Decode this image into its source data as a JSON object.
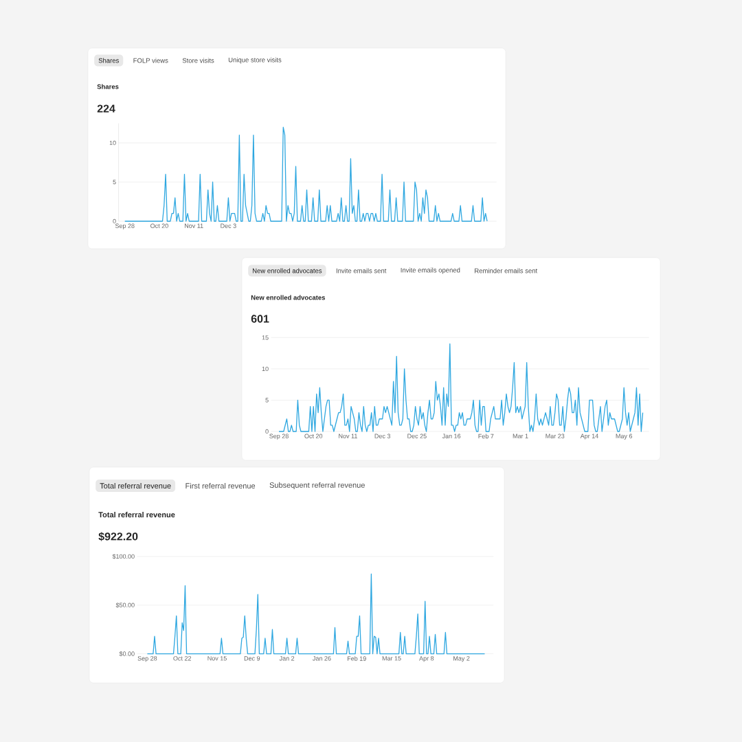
{
  "chart_data": [
    {
      "type": "line",
      "title": "Shares",
      "subtitle": "224",
      "annotations": [
        "Shares",
        "FOLP views",
        "Store visits",
        "Unique store visits"
      ],
      "color": "#2ea7e0",
      "line_style": "solid",
      "grid": "y",
      "ylim": [
        0,
        12.5
      ],
      "yticks": [
        0,
        5,
        10
      ],
      "categories": [
        "Sep 28",
        null,
        null,
        null,
        null,
        null,
        null,
        null,
        null,
        null,
        null,
        null,
        null,
        null,
        null,
        null,
        null,
        null,
        null,
        null,
        null,
        null,
        "Oct 20",
        null,
        null,
        null,
        null,
        null,
        null,
        null,
        null,
        null,
        null,
        null,
        null,
        null,
        null,
        null,
        null,
        null,
        null,
        null,
        null,
        null,
        "Nov 11",
        null,
        null,
        null,
        null,
        null,
        null,
        null,
        null,
        null,
        null,
        null,
        null,
        null,
        null,
        null,
        null,
        null,
        null,
        null,
        null,
        null,
        "Dec 3",
        null,
        null,
        null,
        null,
        null,
        null,
        null,
        null,
        null,
        null,
        null,
        null,
        null,
        null,
        null,
        null,
        null,
        null,
        null,
        null,
        null,
        null,
        null,
        null,
        null,
        null,
        null,
        null,
        null,
        null,
        null,
        null,
        null,
        null,
        null,
        null,
        null,
        null,
        null,
        null,
        null,
        null,
        null,
        null,
        null,
        null,
        null,
        null,
        null,
        null,
        null,
        null,
        null,
        null,
        null,
        null,
        null,
        null,
        null,
        null,
        null,
        null,
        null,
        null,
        null,
        null,
        null,
        null,
        null,
        null,
        null,
        null,
        null,
        null,
        null,
        null,
        null,
        null,
        null,
        null,
        null,
        null,
        null,
        null,
        null,
        null,
        null,
        null,
        null,
        null,
        null,
        null,
        null,
        null,
        null,
        null,
        null,
        null,
        null,
        null,
        null,
        null,
        null,
        null,
        null,
        null,
        null,
        null,
        null,
        null,
        null,
        null,
        null,
        null,
        null,
        null,
        null,
        null,
        null,
        null,
        null,
        null,
        null,
        null,
        null,
        null,
        null,
        null,
        null,
        null,
        null,
        null,
        null,
        null,
        null,
        null,
        null,
        null,
        null,
        null,
        null,
        null,
        null,
        null,
        null,
        null,
        null,
        null,
        null,
        null,
        null,
        null,
        null,
        null,
        null,
        null,
        null,
        null,
        null,
        null,
        null,
        null,
        null,
        null,
        null
      ],
      "values": [
        0,
        0,
        0,
        0,
        0,
        0,
        0,
        0,
        0,
        0,
        0,
        0,
        0,
        0,
        0,
        0,
        0,
        0,
        0,
        0,
        0,
        0,
        0,
        0,
        0,
        2,
        6,
        0,
        0,
        0,
        1,
        1,
        3,
        0,
        1,
        0,
        0,
        0,
        6,
        0,
        1,
        0,
        0,
        0,
        0,
        0,
        0,
        0,
        6,
        0,
        0,
        0,
        0,
        4,
        1,
        0,
        5,
        0,
        0,
        2,
        0,
        0,
        0,
        0,
        0,
        0,
        3,
        0,
        1,
        1,
        1,
        0,
        0,
        11,
        0,
        0,
        6,
        2,
        1,
        0,
        0,
        2,
        11,
        1,
        0,
        0,
        0,
        0,
        1,
        0,
        2,
        1,
        1,
        0,
        0,
        0,
        0,
        0,
        0,
        0,
        0,
        12,
        11,
        0,
        2,
        1,
        1,
        0,
        1,
        7,
        0,
        0,
        0,
        2,
        0,
        0,
        4,
        0,
        0,
        0,
        3,
        0,
        0,
        0,
        4,
        0,
        0,
        0,
        0,
        2,
        0,
        2,
        0,
        0,
        0,
        0,
        1,
        0,
        3,
        0,
        0,
        2,
        0,
        0,
        8,
        1,
        2,
        0,
        0,
        4,
        0,
        0,
        1,
        0,
        1,
        1,
        0,
        1,
        1,
        0,
        1,
        0,
        0,
        0,
        6,
        0,
        0,
        0,
        0,
        4,
        0,
        0,
        0,
        3,
        0,
        0,
        0,
        0,
        5,
        0,
        0,
        0,
        0,
        0,
        0,
        5,
        4,
        0,
        1,
        0,
        3,
        1,
        4,
        3,
        0,
        0,
        0,
        0,
        2,
        0,
        1,
        0,
        0,
        0,
        0,
        0,
        0,
        0,
        0,
        1,
        0,
        0,
        0,
        0,
        2,
        0,
        0,
        0,
        0,
        0,
        0,
        0,
        2,
        0,
        0,
        0,
        0,
        0,
        3,
        0,
        1,
        0
      ]
    },
    {
      "type": "line",
      "title": "New enrolled advocates",
      "subtitle": "601",
      "annotations": [
        "New enrolled advocates",
        "Invite emails sent",
        "Invite emails opened",
        "Reminder emails sent"
      ],
      "color": "#2ea7e0",
      "line_style": "solid",
      "grid": "y",
      "ylim": [
        0,
        15
      ],
      "yticks": [
        0,
        5,
        10,
        15
      ],
      "categories": [
        "Sep 28",
        null,
        null,
        null,
        null,
        null,
        null,
        null,
        null,
        null,
        null,
        null,
        null,
        null,
        null,
        null,
        null,
        null,
        null,
        null,
        null,
        null,
        "Oct 20",
        null,
        null,
        null,
        null,
        null,
        null,
        null,
        null,
        null,
        null,
        null,
        null,
        null,
        null,
        null,
        null,
        null,
        null,
        null,
        null,
        null,
        "Nov 11",
        null,
        null,
        null,
        null,
        null,
        null,
        null,
        null,
        null,
        null,
        null,
        null,
        null,
        null,
        null,
        null,
        null,
        null,
        null,
        null,
        null,
        "Dec 3",
        null,
        null,
        null,
        null,
        null,
        null,
        null,
        null,
        null,
        null,
        null,
        null,
        null,
        null,
        null,
        null,
        null,
        null,
        null,
        null,
        null,
        "Dec 25",
        null,
        null,
        null,
        null,
        null,
        null,
        null,
        null,
        null,
        null,
        null,
        null,
        null,
        null,
        null,
        null,
        null,
        null,
        null,
        null,
        null,
        "Jan 16",
        null,
        null,
        null,
        null,
        null,
        null,
        null,
        null,
        null,
        null,
        null,
        null,
        null,
        null,
        null,
        null,
        null,
        null,
        null,
        null,
        null,
        "Feb 7",
        null,
        null,
        null,
        null,
        null,
        null,
        null,
        null,
        null,
        null,
        null,
        null,
        null,
        null,
        null,
        null,
        null,
        null,
        null,
        null,
        null,
        "Mar 1",
        null,
        null,
        null,
        null,
        null,
        null,
        null,
        null,
        null,
        null,
        null,
        null,
        null,
        null,
        null,
        null,
        null,
        null,
        null,
        null,
        null,
        "Mar 23",
        null,
        null,
        null,
        null,
        null,
        null,
        null,
        null,
        null,
        null,
        null,
        null,
        null,
        null,
        null,
        null,
        null,
        null,
        null,
        null,
        null,
        "Apr 14",
        null,
        null,
        null,
        null,
        null,
        null,
        null,
        null,
        null,
        null,
        null,
        null,
        null,
        null,
        null,
        null,
        null,
        null,
        null,
        null,
        null,
        "May 6",
        null,
        null,
        null,
        null,
        null,
        null,
        null,
        null,
        null,
        null,
        null,
        null
      ],
      "values": [
        0,
        0,
        0,
        0,
        1,
        2,
        0,
        0,
        1,
        0,
        0,
        0,
        5,
        1,
        0,
        0,
        0,
        0,
        0,
        0,
        4,
        0,
        4,
        0,
        6,
        3,
        7,
        3,
        0,
        2,
        4,
        5,
        5,
        1,
        1,
        0,
        1,
        2,
        3,
        3,
        4,
        6,
        1,
        1,
        2,
        0,
        4,
        3,
        2,
        0,
        0,
        3,
        1,
        0,
        4,
        1,
        0,
        1,
        1,
        3,
        0,
        4,
        1,
        1,
        2,
        2,
        2,
        4,
        3,
        4,
        3,
        2,
        1,
        8,
        3,
        12,
        3,
        1,
        1,
        2,
        10,
        5,
        2,
        2,
        0,
        0,
        1,
        4,
        2,
        1,
        4,
        2,
        3,
        1,
        0,
        3,
        5,
        2,
        2,
        3,
        8,
        5,
        6,
        4,
        1,
        7,
        1,
        6,
        4,
        14,
        1,
        1,
        0,
        1,
        1,
        3,
        2,
        3,
        1,
        1,
        2,
        2,
        2,
        3,
        5,
        1,
        0,
        0,
        5,
        1,
        4,
        4,
        0,
        0,
        0,
        2,
        3,
        4,
        2,
        2,
        2,
        2,
        5,
        1,
        3,
        6,
        4,
        3,
        4,
        7,
        11,
        3,
        4,
        3,
        4,
        2,
        3,
        4,
        11,
        4,
        0,
        1,
        0,
        2,
        6,
        2,
        1,
        2,
        1,
        2,
        3,
        2,
        1,
        4,
        1,
        1,
        3,
        6,
        5,
        1,
        1,
        4,
        0,
        2,
        5,
        7,
        6,
        3,
        3,
        5,
        1,
        7,
        3,
        2,
        1,
        0,
        0,
        0,
        5,
        5,
        5,
        1,
        0,
        0,
        2,
        4,
        0,
        2,
        4,
        5,
        1,
        3,
        2,
        2,
        2,
        1,
        0,
        0,
        1,
        2,
        7,
        3,
        1,
        3,
        0,
        1,
        2,
        3,
        7,
        1,
        6,
        0,
        3
      ]
    },
    {
      "type": "line",
      "title": "Total referral revenue",
      "subtitle": "$922.20",
      "annotations": [
        "Total referral revenue",
        "First referral revenue",
        "Subsequent referral revenue"
      ],
      "color": "#2ea7e0",
      "line_style": "solid",
      "grid": "y",
      "ylim": [
        0,
        100
      ],
      "yticks": [
        {
          "value": 0,
          "label": "$0.00"
        },
        {
          "value": 50,
          "label": "$50.00"
        },
        {
          "value": 100,
          "label": "$100.00"
        }
      ],
      "categories": [
        "Sep 28",
        null,
        null,
        null,
        null,
        null,
        null,
        null,
        null,
        null,
        null,
        null,
        null,
        null,
        null,
        null,
        null,
        null,
        null,
        null,
        null,
        null,
        null,
        null,
        "Oct 22",
        null,
        null,
        null,
        null,
        null,
        null,
        null,
        null,
        null,
        null,
        null,
        null,
        null,
        null,
        null,
        null,
        null,
        null,
        null,
        null,
        null,
        null,
        null,
        "Nov 15",
        null,
        null,
        null,
        null,
        null,
        null,
        null,
        null,
        null,
        null,
        null,
        null,
        null,
        null,
        null,
        null,
        null,
        null,
        null,
        null,
        null,
        null,
        null,
        "Dec 9",
        null,
        null,
        null,
        null,
        null,
        null,
        null,
        null,
        null,
        null,
        null,
        null,
        null,
        null,
        null,
        null,
        null,
        null,
        null,
        null,
        null,
        null,
        null,
        "Jan 2",
        null,
        null,
        null,
        null,
        null,
        null,
        null,
        null,
        null,
        null,
        null,
        null,
        null,
        null,
        null,
        null,
        null,
        null,
        null,
        null,
        null,
        null,
        null,
        "Jan 26",
        null,
        null,
        null,
        null,
        null,
        null,
        null,
        null,
        null,
        null,
        null,
        null,
        null,
        null,
        null,
        null,
        null,
        null,
        null,
        null,
        null,
        null,
        null,
        "Feb 19",
        null,
        null,
        null,
        null,
        null,
        null,
        null,
        null,
        null,
        null,
        null,
        null,
        null,
        null,
        null,
        null,
        null,
        null,
        null,
        null,
        null,
        null,
        null,
        "Mar 15",
        null,
        null,
        null,
        null,
        null,
        null,
        null,
        null,
        null,
        null,
        null,
        null,
        null,
        null,
        null,
        null,
        null,
        null,
        null,
        null,
        null,
        null,
        null,
        "Apr 8",
        null,
        null,
        null,
        null,
        null,
        null,
        null,
        null,
        null,
        null,
        null,
        null,
        null,
        null,
        null,
        null,
        null,
        null,
        null,
        null,
        null,
        null,
        null,
        "May 2",
        null,
        null,
        null,
        null,
        null,
        null,
        null,
        null,
        null,
        null,
        null,
        null,
        null,
        null,
        null,
        null
      ],
      "values": [
        0,
        0,
        0,
        0,
        0,
        18,
        0,
        0,
        0,
        0,
        0,
        0,
        0,
        0,
        0,
        0,
        0,
        0,
        0,
        18,
        39,
        0,
        0,
        0,
        32,
        24,
        70,
        0,
        0,
        0,
        0,
        0,
        0,
        0,
        0,
        0,
        0,
        0,
        0,
        0,
        0,
        0,
        0,
        0,
        0,
        0,
        0,
        0,
        0,
        0,
        0,
        16,
        0,
        0,
        0,
        0,
        0,
        0,
        0,
        0,
        0,
        0,
        0,
        0,
        0,
        16,
        17,
        39,
        16,
        0,
        0,
        0,
        0,
        0,
        0,
        25,
        61,
        0,
        0,
        0,
        0,
        16,
        0,
        0,
        0,
        0,
        25,
        0,
        0,
        0,
        0,
        0,
        0,
        0,
        0,
        0,
        16,
        0,
        0,
        0,
        0,
        0,
        0,
        16,
        0,
        0,
        0,
        0,
        0,
        0,
        0,
        0,
        0,
        0,
        0,
        0,
        0,
        0,
        0,
        0,
        0,
        0,
        0,
        0,
        0,
        0,
        0,
        0,
        0,
        27,
        0,
        0,
        0,
        0,
        0,
        0,
        0,
        0,
        13,
        0,
        0,
        0,
        0,
        0,
        18,
        18,
        39,
        0,
        0,
        0,
        0,
        0,
        0,
        0,
        82,
        0,
        18,
        17,
        0,
        16,
        0,
        0,
        0,
        0,
        0,
        0,
        0,
        0,
        0,
        0,
        0,
        0,
        0,
        0,
        22,
        0,
        0,
        18,
        0,
        0,
        0,
        0,
        0,
        0,
        0,
        18,
        41,
        0,
        0,
        0,
        0,
        54,
        0,
        0,
        18,
        0,
        0,
        0,
        20,
        0,
        0,
        0,
        0,
        0,
        0,
        22,
        0,
        0,
        0,
        0,
        0,
        0,
        0,
        0,
        0,
        0,
        0,
        0,
        0,
        0,
        0,
        0,
        0,
        0,
        0,
        0,
        0,
        0,
        0,
        0,
        0,
        0,
        0
      ]
    }
  ]
}
